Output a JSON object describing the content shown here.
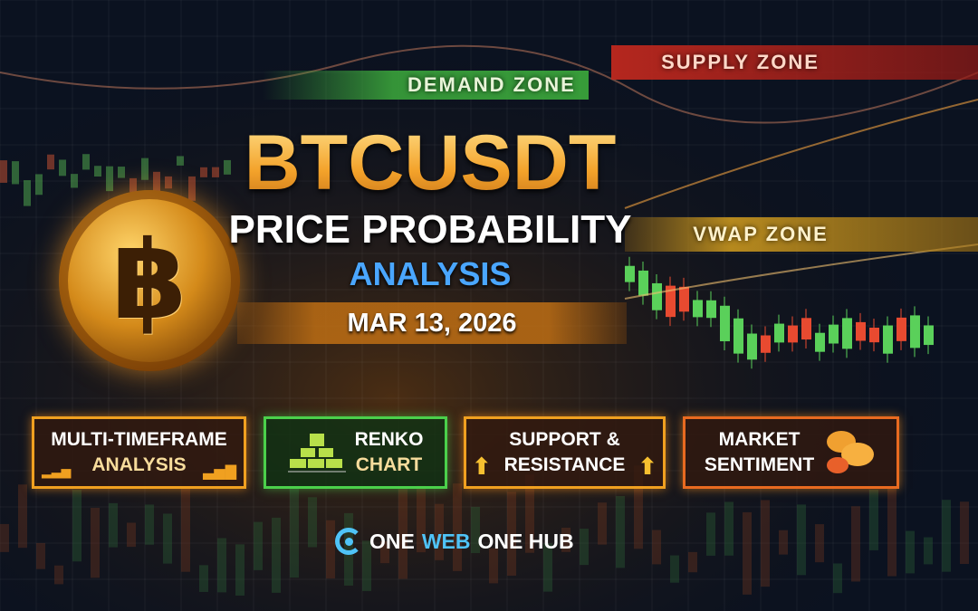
{
  "zones": {
    "demand": "DEMAND ZONE",
    "supply": "SUPPLY ZONE",
    "vwap": "VWAP ZONE"
  },
  "title": "BTCUSDT",
  "subtitle_1": "PRICE PROBABILITY",
  "subtitle_2": "ANALYSIS",
  "date": "MAR 13, 2026",
  "coin_symbol": "฿",
  "features": [
    {
      "line1": "MULTI-TIMEFRAME",
      "line2": "ANALYSIS",
      "icon": "bar-chart-icon"
    },
    {
      "line1": "RENKO",
      "line2": "CHART",
      "icon": "renko-bricks-icon"
    },
    {
      "line1": "SUPPORT &",
      "line2": "RESISTANCE",
      "icon": "up-arrow-icon"
    },
    {
      "line1": "MARKET",
      "line2": "SENTIMENT",
      "icon": "bull-bear-icon"
    }
  ],
  "logo": {
    "part1": "ONE",
    "part2": "WEB",
    "part3": "ONE HUB"
  },
  "colors": {
    "gold": "#f6b73c",
    "blue": "#4aa6ff",
    "green": "#4bd04b",
    "red": "#c0281e",
    "bg": "#0a0f18"
  }
}
